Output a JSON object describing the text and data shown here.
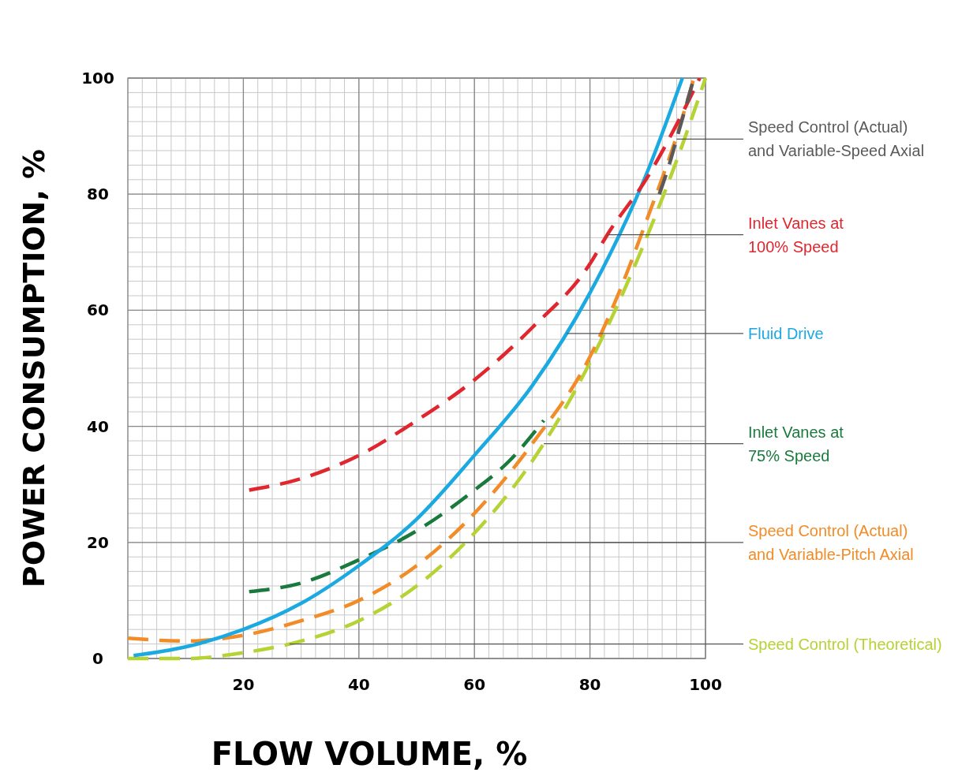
{
  "chart_data": {
    "type": "line",
    "xlabel": "FLOW VOLUME, %",
    "ylabel": "POWER CONSUMPTION, %",
    "xlim": [
      0,
      100
    ],
    "ylim": [
      0,
      100
    ],
    "xticks": [
      20,
      40,
      60,
      80,
      100
    ],
    "yticks": [
      0,
      20,
      40,
      60,
      80,
      100
    ],
    "grid": true,
    "marker": "none",
    "series": [
      {
        "color": "#5a5a5a",
        "line_style": "dashed",
        "x": [
          92,
          94,
          95,
          96,
          98
        ],
        "values": [
          80,
          86,
          89.5,
          93,
          100
        ]
      },
      {
        "color": "#e0262e",
        "line_style": "dashed",
        "x": [
          21,
          30,
          40,
          50,
          60,
          70,
          80,
          83,
          90,
          95,
          99
        ],
        "values": [
          29,
          31,
          35,
          41,
          48,
          57,
          68,
          73,
          83,
          92,
          100
        ]
      },
      {
        "color": "#1ba9e1",
        "line_style": "solid",
        "x": [
          1,
          10,
          20,
          30,
          40,
          50,
          60,
          70,
          80,
          90,
          96
        ],
        "values": [
          0.5,
          2,
          5,
          9.5,
          16,
          24,
          35,
          47,
          63,
          84,
          100
        ]
      },
      {
        "color": "#1a7a3e",
        "line_style": "dashed",
        "x": [
          21,
          30,
          40,
          50,
          60,
          66,
          72
        ],
        "values": [
          11.5,
          13,
          17,
          22,
          29,
          34,
          41
        ]
      },
      {
        "color": "#f28c28",
        "line_style": "dashed",
        "x": [
          0,
          10,
          20,
          30,
          40,
          50,
          60,
          70,
          80,
          85,
          90,
          95,
          98
        ],
        "values": [
          3.5,
          3,
          4,
          6.5,
          10,
          16,
          25,
          37,
          52,
          63,
          76,
          90,
          100
        ]
      },
      {
        "color": "#b5d334",
        "line_style": "dashed",
        "x": [
          0,
          10,
          20,
          30,
          40,
          50,
          60,
          70,
          80,
          90,
          96,
          100
        ],
        "values": [
          0,
          0,
          1,
          3,
          6.5,
          12.5,
          21.6,
          34,
          51,
          73,
          88.5,
          100
        ]
      }
    ],
    "annotations": [
      "Speed Control (Actual)\nand Variable-Speed Axial",
      {
        "text": "Inlet Vanes at\n100% Speed",
        "x": 83,
        "y": 73
      },
      {
        "text": "Fluid Drive",
        "x": 76,
        "y": 56
      },
      {
        "text": "Inlet Vanes at\n75% Speed",
        "x": 72,
        "y": 37
      },
      {
        "text": "Speed Control (Actual)\nand Variable-Pitch Axial",
        "x": 54,
        "y": 20
      },
      {
        "text": "Speed Control (Theoretical)",
        "x": 28,
        "y": 2.5
      }
    ]
  }
}
